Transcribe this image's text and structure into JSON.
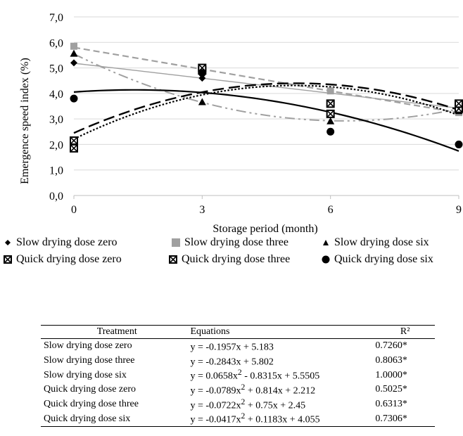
{
  "chart_data": {
    "type": "line",
    "xlabel": "Storage period (month)",
    "ylabel": "Emergence speed  index (%)",
    "x": [
      0,
      3,
      6,
      9
    ],
    "x_ticks": [
      "0",
      "3",
      "6",
      "9"
    ],
    "y_ticks": [
      "0,0",
      "1,0",
      "2,0",
      "3,0",
      "4,0",
      "5,0",
      "6,0",
      "7,0"
    ],
    "ylim": [
      0,
      7
    ],
    "grid": "horizontal",
    "legend_position": "bottom",
    "series": [
      {
        "name": "Slow drying dose zero",
        "marker": "diamond",
        "color": "#000000",
        "values": [
          5.2,
          4.6,
          3.2,
          3.3
        ],
        "trend": {
          "a": 0,
          "b": -0.1957,
          "c": 5.183
        },
        "line_style": "solid",
        "line_color": "#a0a0a0"
      },
      {
        "name": "Slow drying dose three",
        "marker": "square",
        "color": "#a0a0a0",
        "values": [
          5.85,
          4.9,
          4.1,
          3.25
        ],
        "trend": {
          "a": 0,
          "b": -0.2843,
          "c": 5.802
        },
        "line_style": "dash",
        "line_color": "#a0a0a0"
      },
      {
        "name": "Slow drying dose six",
        "marker": "triangle",
        "color": "#000000",
        "values": [
          5.55,
          3.65,
          2.9,
          3.3
        ],
        "trend": {
          "a": 0.0658,
          "b": -0.8315,
          "c": 5.5505
        },
        "line_style": "dashdotdot",
        "line_color": "#a0a0a0"
      },
      {
        "name": "Quick drying dose zero",
        "marker": "boxed-x",
        "color": "#000000",
        "values": [
          1.85,
          4.9,
          3.2,
          3.4
        ],
        "trend": {
          "a": -0.0789,
          "b": 0.814,
          "c": 2.212
        },
        "line_style": "dot",
        "line_color": "#000000"
      },
      {
        "name": "Quick drying dose three",
        "marker": "boxed-x",
        "color": "#000000",
        "values": [
          2.15,
          5.0,
          3.6,
          3.6
        ],
        "trend": {
          "a": -0.0722,
          "b": 0.75,
          "c": 2.45
        },
        "line_style": "longdash",
        "line_color": "#000000"
      },
      {
        "name": "Quick drying dose six",
        "marker": "circle",
        "color": "#000000",
        "values": [
          3.8,
          4.8,
          2.5,
          2.0
        ],
        "trend": {
          "a": -0.0417,
          "b": 0.1183,
          "c": 4.055
        },
        "line_style": "solid",
        "line_color": "#000000"
      }
    ]
  },
  "table": {
    "headers": [
      "Treatment",
      "Equations",
      "R²"
    ],
    "rows": [
      {
        "treatment": "Slow drying dose zero",
        "eq_main": "y = -0.1957x + 5.183",
        "eq_sup": "",
        "eq_tail": "",
        "r2": "0.7260*"
      },
      {
        "treatment": "Slow drying dose three",
        "eq_main": "y = -0.2843x + 5.802",
        "eq_sup": "",
        "eq_tail": "",
        "r2": "0.8063*"
      },
      {
        "treatment": "Slow drying dose six",
        "eq_main": "y = 0.0658x",
        "eq_sup": "2",
        "eq_tail": " - 0.8315x + 5.5505",
        "r2": "1.0000*"
      },
      {
        "treatment": "Quick drying dose zero",
        "eq_main": "y = -0.0789x",
        "eq_sup": "2",
        "eq_tail": " + 0.814x + 2.212",
        "r2": "0.5025*"
      },
      {
        "treatment": "Quick drying dose three",
        "eq_main": "y = -0.0722x",
        "eq_sup": "2",
        "eq_tail": " + 0.75x + 2.45",
        "r2": "0.6313*"
      },
      {
        "treatment": "Quick drying dose six",
        "eq_main": "y = -0.0417x",
        "eq_sup": "2",
        "eq_tail": " + 0.1183x + 4.055",
        "r2": "0.7306*"
      }
    ]
  }
}
